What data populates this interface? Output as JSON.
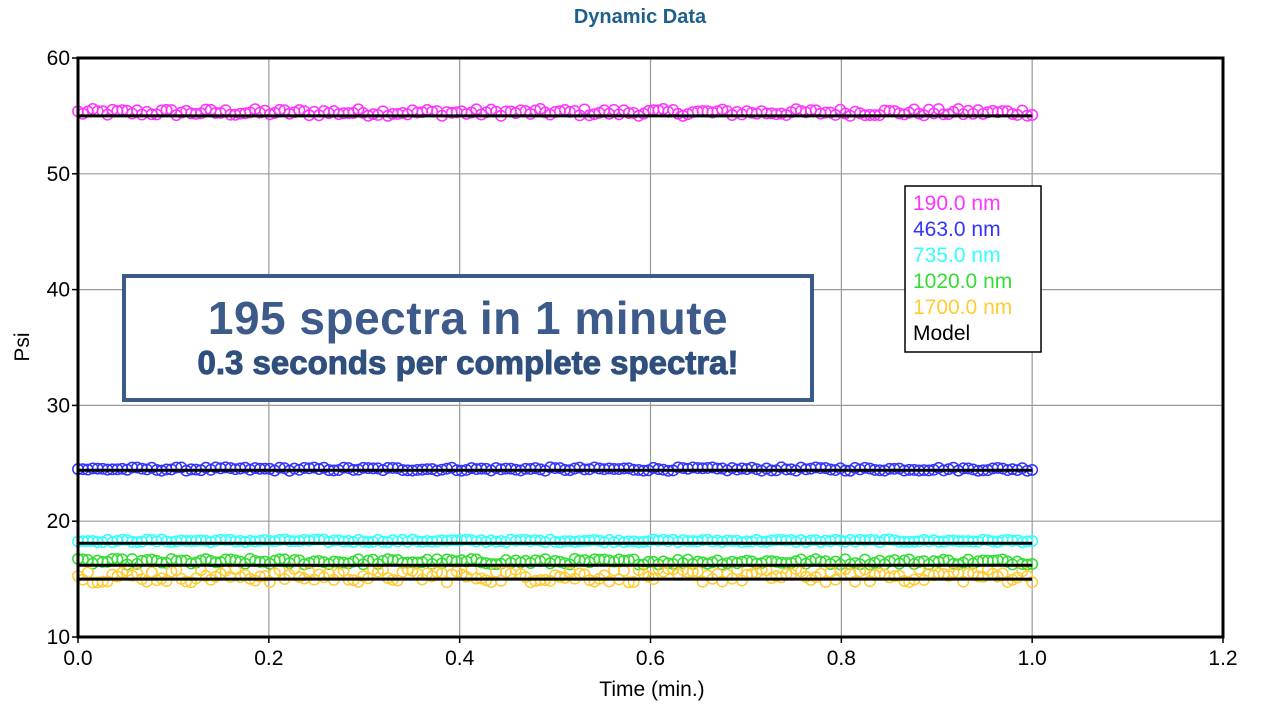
{
  "chart_data": {
    "type": "scatter",
    "title": "Dynamic Data",
    "xlabel": "Time (min.)",
    "ylabel": "Psi",
    "xlim": [
      0.0,
      1.2
    ],
    "ylim": [
      10,
      60
    ],
    "xticks": [
      0.0,
      0.2,
      0.4,
      0.6,
      0.8,
      1.0,
      1.2
    ],
    "xtick_labels": [
      "0.0",
      "0.2",
      "0.4",
      "0.6",
      "0.8",
      "1.0",
      "1.2"
    ],
    "yticks": [
      10,
      20,
      30,
      40,
      50,
      60
    ],
    "ytick_labels": [
      "10",
      "20",
      "30",
      "40",
      "50",
      "60"
    ],
    "grid": true,
    "legend_position": "right",
    "n_points": 195,
    "series": [
      {
        "name": "190.0 nm",
        "color": "#ff33ff",
        "marker": "circle",
        "mean": 55.3,
        "spread": 0.3,
        "model": 55.0
      },
      {
        "name": "463.0 nm",
        "color": "#3333ff",
        "marker": "circle",
        "mean": 24.5,
        "spread": 0.15,
        "model": 24.4
      },
      {
        "name": "735.0 nm",
        "color": "#33ffff",
        "marker": "circle",
        "mean": 18.3,
        "spread": 0.12,
        "model": 18.1
      },
      {
        "name": "1020.0 nm",
        "color": "#33dd33",
        "marker": "circle",
        "mean": 16.5,
        "spread": 0.25,
        "model": 16.2
      },
      {
        "name": "1700.0 nm",
        "color": "#ffcc33",
        "marker": "circle",
        "mean": 15.3,
        "spread": 0.6,
        "model": 15.0
      }
    ],
    "model": {
      "name": "Model",
      "color": "#000000"
    },
    "annotation": {
      "line1": "195 spectra in 1 minute",
      "line2": "0.3 seconds per complete spectra!"
    }
  }
}
